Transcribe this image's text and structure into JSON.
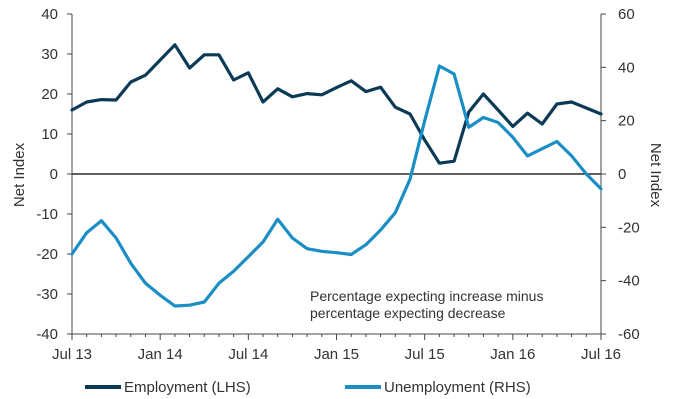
{
  "chart_data": {
    "type": "line",
    "annotation": [
      "Percentage expecting increase minus",
      "percentage expecting decrease"
    ],
    "ylabel_left": "Net Index",
    "ylabel_right": "Net Index",
    "x_tick_labels": [
      "Jul 13",
      "Jan 14",
      "Jul 14",
      "Jan 15",
      "Jul 15",
      "Jan 16",
      "Jul 16"
    ],
    "x_tick_month_index": [
      0,
      6,
      12,
      18,
      24,
      30,
      36
    ],
    "left_axis": {
      "min": -40,
      "max": 40,
      "step": 10,
      "ticks": [
        "-40",
        "-30",
        "-20",
        "-10",
        "0",
        "10",
        "20",
        "30",
        "40"
      ]
    },
    "right_axis": {
      "min": -60,
      "max": 60,
      "step": 20,
      "ticks": [
        "-60",
        "-40",
        "-20",
        "0",
        "20",
        "40",
        "60"
      ]
    },
    "legend_position": "bottom",
    "series": [
      {
        "name": "Employment (LHS)",
        "axis": "left",
        "color": "#0b3a57",
        "x": [
          0,
          1,
          2,
          3,
          4,
          5,
          6,
          7,
          8,
          9,
          10,
          11,
          12,
          13,
          14,
          15,
          16,
          17,
          18,
          19,
          20,
          21,
          22,
          23,
          24,
          25,
          26,
          27,
          28,
          29,
          30,
          31,
          32,
          33,
          34,
          35,
          36
        ],
        "values": [
          16,
          18,
          18.6,
          18.5,
          23,
          24.7,
          28.5,
          32.3,
          26.5,
          29.8,
          29.8,
          23.5,
          25.3,
          18,
          21.3,
          19.3,
          20.1,
          19.8,
          21.6,
          23.3,
          20.6,
          21.7,
          16.7,
          15,
          8.5,
          2.7,
          3.2,
          15.5,
          20,
          16,
          11.9,
          15.2,
          12.5,
          17.5,
          18,
          16.5,
          15
        ]
      },
      {
        "name": "Unemployment (RHS)",
        "axis": "right",
        "color": "#1a8ec5",
        "x": [
          0,
          1,
          2,
          3,
          4,
          5,
          6,
          7,
          8,
          9,
          10,
          11,
          12,
          13,
          14,
          15,
          16,
          17,
          18,
          19,
          20,
          21,
          22,
          23,
          24,
          25,
          26,
          27,
          28,
          29,
          30,
          31,
          32,
          33,
          34,
          35,
          36
        ],
        "values": [
          -30,
          -22,
          -17.5,
          -24,
          -33.5,
          -41,
          -45.5,
          -49.5,
          -49.2,
          -48,
          -41,
          -36.5,
          -31,
          -25.5,
          -17,
          -24,
          -28,
          -29,
          -29.5,
          -30.2,
          -26.5,
          -21,
          -14.5,
          -2,
          20,
          40.5,
          37.5,
          17.5,
          21.2,
          19.3,
          13.8,
          6.8,
          9.5,
          12.2,
          6.8,
          0,
          -5.5
        ]
      }
    ]
  }
}
